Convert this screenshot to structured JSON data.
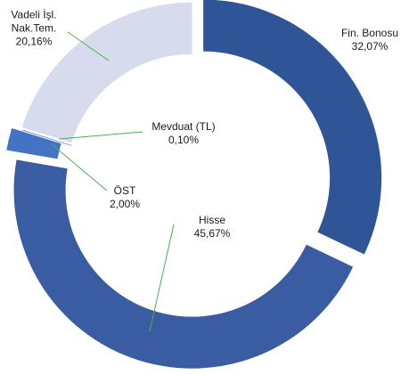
{
  "chart_data": {
    "type": "donut",
    "categories": [
      "Fin. Bonosu",
      "Hisse",
      "ÖST",
      "Mevduat (TL)",
      "Vadeli İşl. Nak.Tem."
    ],
    "values": [
      32.07,
      45.67,
      2.0,
      0.1,
      20.16
    ],
    "value_labels": [
      "32,07%",
      "45,67%",
      "2,00%",
      "0,10%",
      "20,16%"
    ],
    "colors": [
      "#2f5597",
      "#3a5ca3",
      "#4472c4",
      "#8fa3cf",
      "#d6dcee"
    ]
  }
}
